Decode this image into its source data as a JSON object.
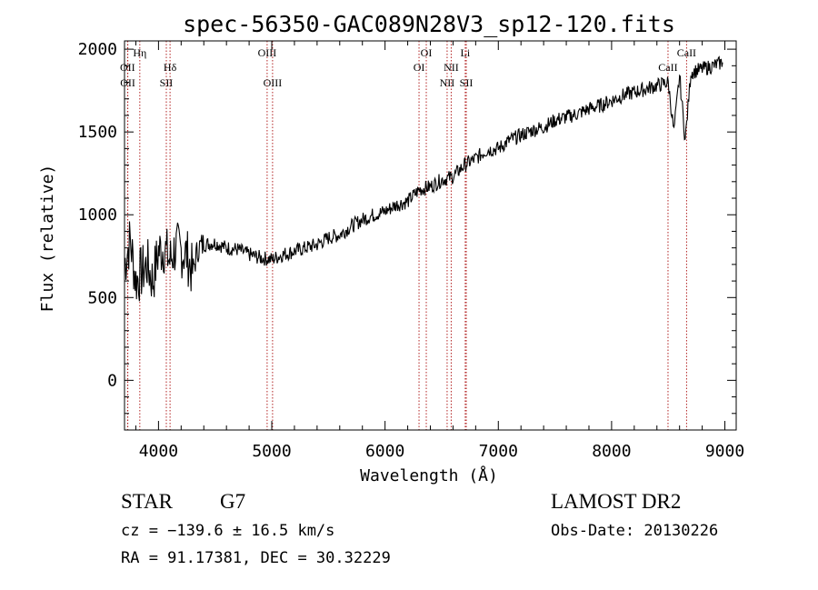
{
  "chart_data": {
    "type": "line",
    "title": "spec-56350-GAC089N28V3_sp12-120.fits",
    "xlabel": "Wavelength (Å)",
    "ylabel": "Flux (relative)",
    "xlim": [
      3700,
      9100
    ],
    "ylim": [
      -300,
      2050
    ],
    "xticks": [
      4000,
      5000,
      6000,
      7000,
      8000,
      9000
    ],
    "yticks": [
      0,
      500,
      1000,
      1500,
      2000
    ],
    "grid": false,
    "series": [
      {
        "x": [
          3700,
          3750,
          3800,
          3850,
          3900,
          3950,
          4000,
          4050,
          4100,
          4150,
          4200,
          4250,
          4300,
          4350,
          4400,
          4500,
          4600,
          4700,
          4800,
          4900,
          5000,
          5100,
          5200,
          5300,
          5400,
          5500,
          5600,
          5700,
          5800,
          5900,
          6000,
          6100,
          6200,
          6300,
          6400,
          6500,
          6600,
          6700,
          6800,
          6900,
          7000,
          7100,
          7200,
          7300,
          7400,
          7500,
          7600,
          7700,
          7800,
          7900,
          8000,
          8100,
          8200,
          8300,
          8400,
          8500,
          8550,
          8600,
          8650,
          8700,
          8800,
          8900,
          8980
        ],
        "y": [
          700,
          850,
          600,
          650,
          700,
          600,
          780,
          800,
          720,
          800,
          780,
          760,
          650,
          800,
          820,
          830,
          800,
          790,
          760,
          740,
          730,
          760,
          780,
          800,
          820,
          860,
          880,
          930,
          970,
          1000,
          1020,
          1060,
          1080,
          1150,
          1170,
          1210,
          1230,
          1300,
          1340,
          1390,
          1400,
          1450,
          1480,
          1510,
          1530,
          1570,
          1590,
          1610,
          1640,
          1660,
          1690,
          1720,
          1740,
          1760,
          1780,
          1800,
          1500,
          1840,
          1450,
          1860,
          1880,
          1900,
          1920
        ]
      }
    ],
    "spectral_lines": [
      {
        "name": "Hη",
        "wavelength": 3835,
        "row": 0
      },
      {
        "name": "OII",
        "wavelength": 3727,
        "row": 1
      },
      {
        "name": "OII",
        "wavelength": 3729,
        "row": 2
      },
      {
        "name": "Hδ",
        "wavelength": 4102,
        "row": 1
      },
      {
        "name": "SII",
        "wavelength": 4069,
        "row": 2
      },
      {
        "name": "OIII",
        "wavelength": 4959,
        "row": 0
      },
      {
        "name": "OIII",
        "wavelength": 5007,
        "row": 2
      },
      {
        "name": "OI",
        "wavelength": 6364,
        "row": 0
      },
      {
        "name": "OI",
        "wavelength": 6300,
        "row": 1
      },
      {
        "name": "Li",
        "wavelength": 6708,
        "row": 0
      },
      {
        "name": "NII",
        "wavelength": 6584,
        "row": 1
      },
      {
        "name": "NII",
        "wavelength": 6548,
        "row": 2
      },
      {
        "name": "SII",
        "wavelength": 6717,
        "row": 2
      },
      {
        "name": "CaII",
        "wavelength": 8662,
        "row": 0
      },
      {
        "name": "CaII",
        "wavelength": 8498,
        "row": 1
      }
    ],
    "line_color": "#000000",
    "marker_color": "#b22222"
  },
  "footer": {
    "object_class": "STAR",
    "subclass": "G7",
    "survey": "LAMOST DR2",
    "velocity": "cz = −139.6 ± 16.5 km/s",
    "obs_date": "Obs-Date: 20130226",
    "coords": "RA =  91.17381, DEC =  30.32229"
  }
}
